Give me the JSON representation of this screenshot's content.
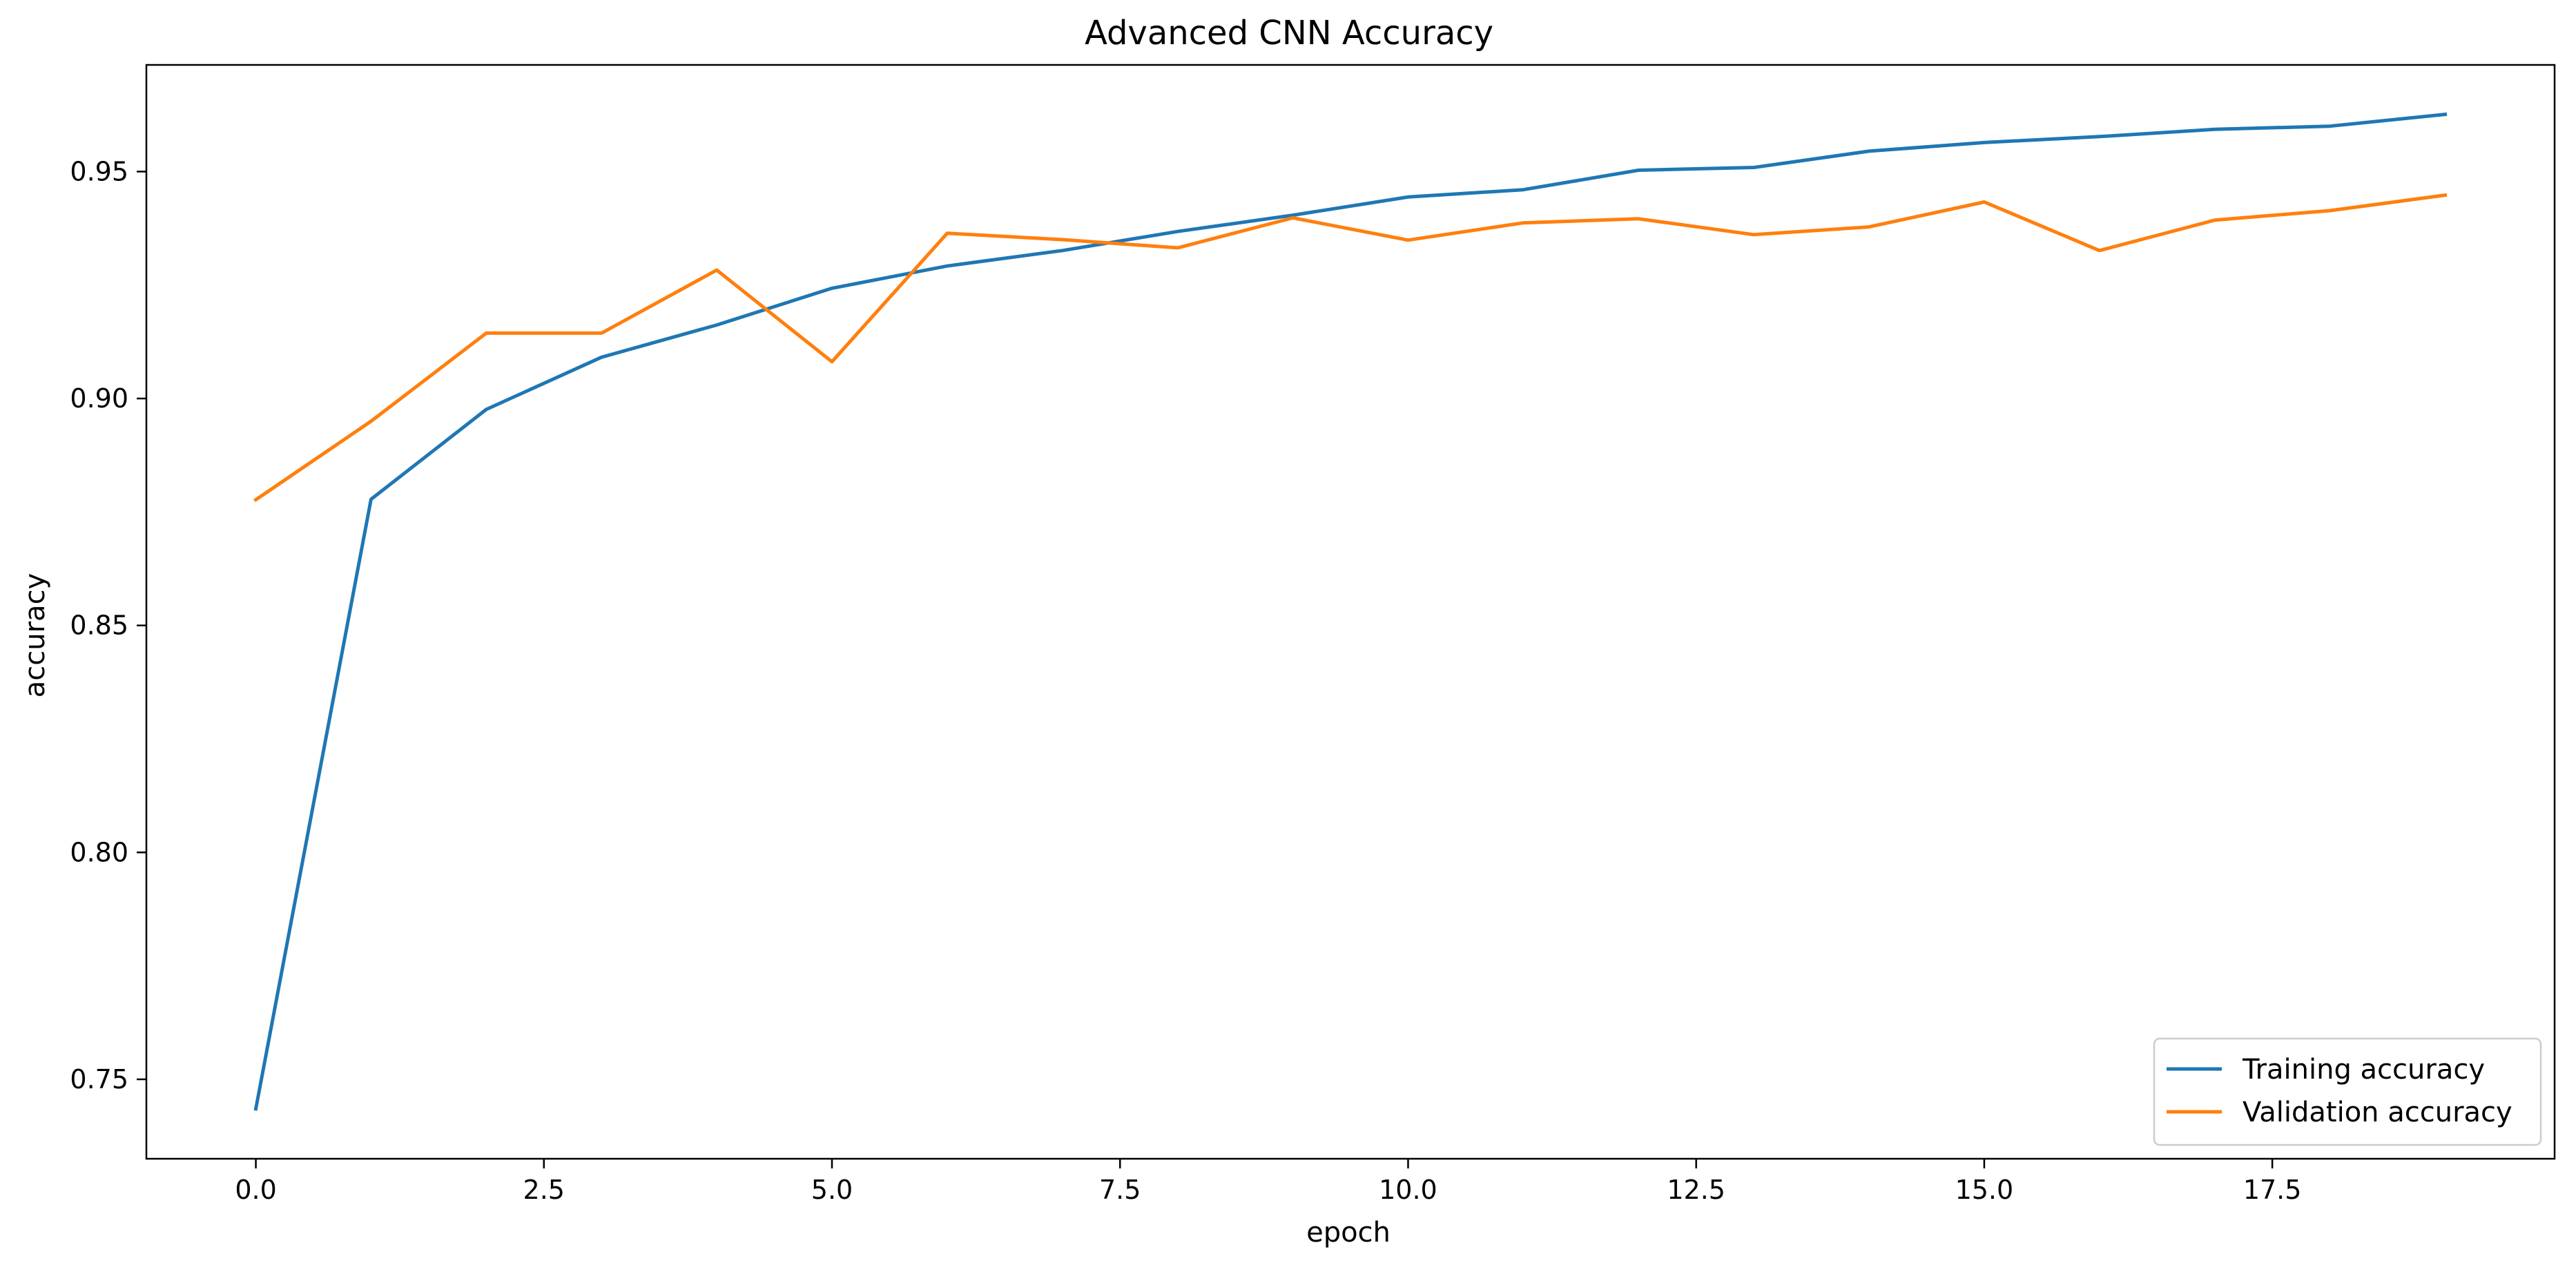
{
  "chart_data": {
    "type": "line",
    "title": "Advanced CNN Accuracy",
    "xlabel": "epoch",
    "ylabel": "accuracy",
    "xlim": [
      -0.95,
      19.95
    ],
    "ylim": [
      0.7325,
      0.9735
    ],
    "xticks": [
      0.0,
      2.5,
      5.0,
      7.5,
      10.0,
      12.5,
      15.0,
      17.5
    ],
    "xtick_labels": [
      "0.0",
      "2.5",
      "5.0",
      "7.5",
      "10.0",
      "12.5",
      "15.0",
      "17.5"
    ],
    "yticks": [
      0.75,
      0.8,
      0.85,
      0.9,
      0.95
    ],
    "ytick_labels": [
      "0.75",
      "0.80",
      "0.85",
      "0.90",
      "0.95"
    ],
    "grid": false,
    "legend_position": "bottom-right",
    "x": [
      0,
      1,
      2,
      3,
      4,
      5,
      6,
      7,
      8,
      9,
      10,
      11,
      12,
      13,
      14,
      15,
      16,
      17,
      18,
      19
    ],
    "series": [
      {
        "name": "Training accuracy",
        "color": "#1f77b4",
        "values": [
          0.7435,
          0.8778,
          0.8976,
          0.9091,
          0.9162,
          0.9243,
          0.9292,
          0.9326,
          0.9368,
          0.9404,
          0.9444,
          0.946,
          0.9503,
          0.9509,
          0.9545,
          0.9564,
          0.9577,
          0.9593,
          0.96,
          0.9626
        ]
      },
      {
        "name": "Validation accuracy",
        "color": "#ff7f0e",
        "values": [
          0.8777,
          0.895,
          0.9144,
          0.9144,
          0.9283,
          0.9081,
          0.9364,
          0.935,
          0.9332,
          0.9398,
          0.9349,
          0.9387,
          0.9396,
          0.9361,
          0.9378,
          0.9433,
          0.9326,
          0.9393,
          0.9414,
          0.9448
        ]
      }
    ]
  }
}
